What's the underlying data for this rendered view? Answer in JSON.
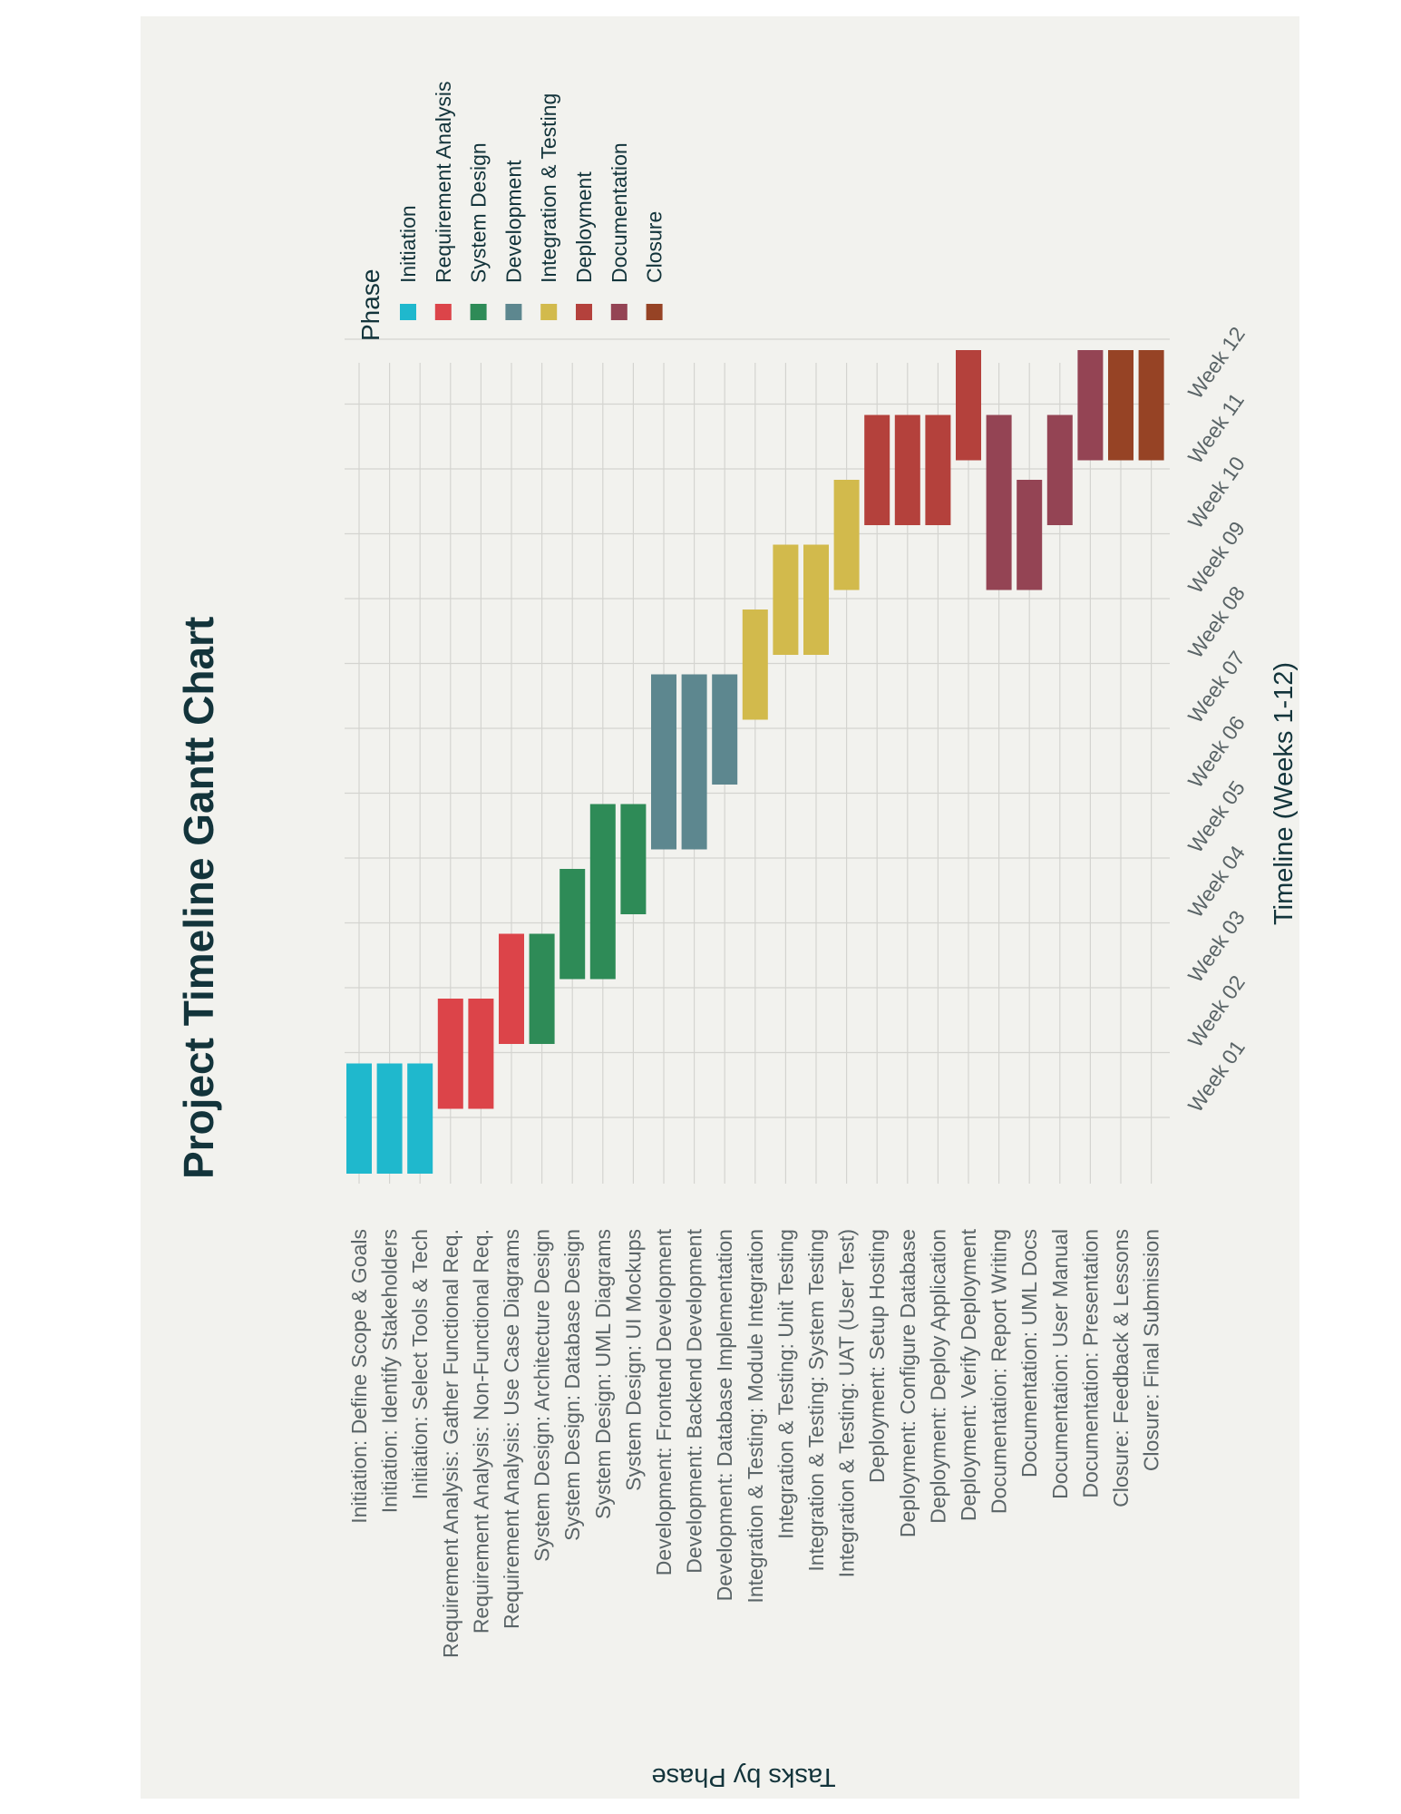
{
  "chart_data": {
    "type": "gantt",
    "orientation": "rotated-90-counterclockwise",
    "title": "Project Timeline Gantt Chart",
    "xlabel": "Timeline (Weeks 1-12)",
    "ylabel": "Tasks by Phase",
    "x_ticks": [
      "Week 01",
      "Week 02",
      "Week 03",
      "Week 04",
      "Week 05",
      "Week 06",
      "Week 07",
      "Week 08",
      "Week 09",
      "Week 10",
      "Week 11",
      "Week 12"
    ],
    "xlim": [
      1,
      12
    ],
    "grid": true,
    "legend": {
      "title": "Phase",
      "placement": "top-right",
      "entries": [
        {
          "name": "Initiation",
          "color": "#1fb8cd"
        },
        {
          "name": "Requirement Analysis",
          "color": "#dc4449"
        },
        {
          "name": "System Design",
          "color": "#2e8b57"
        },
        {
          "name": "Development",
          "color": "#5d878f"
        },
        {
          "name": "Integration & Testing",
          "color": "#d2ba4c"
        },
        {
          "name": "Deployment",
          "color": "#b4413c"
        },
        {
          "name": "Documentation",
          "color": "#944454"
        },
        {
          "name": "Closure",
          "color": "#964325"
        }
      ]
    },
    "tasks": [
      {
        "label": "Initiation: Define Scope & Goals",
        "phase": "Initiation",
        "start_week": 1,
        "end_week": 1
      },
      {
        "label": "Initiation: Identify Stakeholders",
        "phase": "Initiation",
        "start_week": 1,
        "end_week": 1
      },
      {
        "label": "Initiation: Select Tools & Tech",
        "phase": "Initiation",
        "start_week": 1,
        "end_week": 1
      },
      {
        "label": "Requirement Analysis: Gather Functional Req.",
        "phase": "Requirement Analysis",
        "start_week": 2,
        "end_week": 2
      },
      {
        "label": "Requirement Analysis: Non-Functional Req.",
        "phase": "Requirement Analysis",
        "start_week": 2,
        "end_week": 2
      },
      {
        "label": "Requirement Analysis: Use Case Diagrams",
        "phase": "Requirement Analysis",
        "start_week": 3,
        "end_week": 3
      },
      {
        "label": "System Design: Architecture Design",
        "phase": "System Design",
        "start_week": 3,
        "end_week": 3
      },
      {
        "label": "System Design: Database Design",
        "phase": "System Design",
        "start_week": 4,
        "end_week": 4
      },
      {
        "label": "System Design: UML Diagrams",
        "phase": "System Design",
        "start_week": 4,
        "end_week": 5
      },
      {
        "label": "System Design: UI Mockups",
        "phase": "System Design",
        "start_week": 5,
        "end_week": 5
      },
      {
        "label": "Development: Frontend Development",
        "phase": "Development",
        "start_week": 6,
        "end_week": 7
      },
      {
        "label": "Development: Backend Development",
        "phase": "Development",
        "start_week": 6,
        "end_week": 7
      },
      {
        "label": "Development: Database Implementation",
        "phase": "Development",
        "start_week": 7,
        "end_week": 7
      },
      {
        "label": "Integration & Testing: Module Integration",
        "phase": "Integration & Testing",
        "start_week": 8,
        "end_week": 8
      },
      {
        "label": "Integration & Testing: Unit Testing",
        "phase": "Integration & Testing",
        "start_week": 9,
        "end_week": 9
      },
      {
        "label": "Integration & Testing: System Testing",
        "phase": "Integration & Testing",
        "start_week": 9,
        "end_week": 9
      },
      {
        "label": "Integration & Testing: UAT (User Test)",
        "phase": "Integration & Testing",
        "start_week": 10,
        "end_week": 10
      },
      {
        "label": "Deployment: Setup Hosting",
        "phase": "Deployment",
        "start_week": 11,
        "end_week": 11
      },
      {
        "label": "Deployment: Configure Database",
        "phase": "Deployment",
        "start_week": 11,
        "end_week": 11
      },
      {
        "label": "Deployment: Deploy Application",
        "phase": "Deployment",
        "start_week": 11,
        "end_week": 11
      },
      {
        "label": "Deployment: Verify Deployment",
        "phase": "Deployment",
        "start_week": 12,
        "end_week": 12
      },
      {
        "label": "Documentation: Report Writing",
        "phase": "Documentation",
        "start_week": 10,
        "end_week": 11
      },
      {
        "label": "Documentation: UML Docs",
        "phase": "Documentation",
        "start_week": 10,
        "end_week": 10
      },
      {
        "label": "Documentation: User Manual",
        "phase": "Documentation",
        "start_week": 11,
        "end_week": 11
      },
      {
        "label": "Documentation: Presentation",
        "phase": "Documentation",
        "start_week": 12,
        "end_week": 12
      },
      {
        "label": "Closure: Feedback & Lessons",
        "phase": "Closure",
        "start_week": 12,
        "end_week": 12
      },
      {
        "label": "Closure: Final Submission",
        "phase": "Closure",
        "start_week": 12,
        "end_week": 12
      }
    ]
  }
}
